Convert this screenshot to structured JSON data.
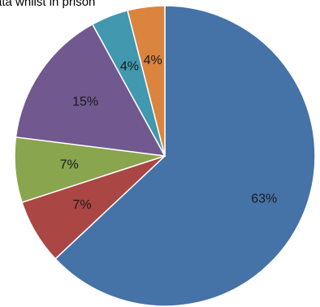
{
  "chart_data": {
    "type": "pie",
    "title": "ata whilst in prison",
    "start_angle_deg": 0,
    "direction": "clockwise",
    "slices": [
      {
        "label": "63%",
        "value": 63,
        "color": "#4572a7"
      },
      {
        "label": "7%",
        "value": 7,
        "color": "#aa4643"
      },
      {
        "label": "7%",
        "value": 7,
        "color": "#89a54e"
      },
      {
        "label": "15%",
        "value": 15,
        "color": "#71588f"
      },
      {
        "label": "4%",
        "value": 4,
        "color": "#4198af"
      },
      {
        "label": "4%",
        "value": 4,
        "color": "#db843d"
      }
    ]
  }
}
